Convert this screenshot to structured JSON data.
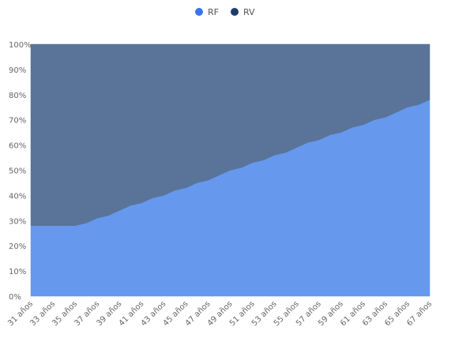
{
  "chart_data": {
    "type": "area",
    "stacked": true,
    "percent": true,
    "title": "",
    "xlabel": "",
    "ylabel": "",
    "x": [
      "31 años",
      "32 años",
      "33 años",
      "34 años",
      "35 años",
      "36 años",
      "37 años",
      "38 años",
      "39 años",
      "40 años",
      "41 años",
      "42 años",
      "43 años",
      "44 años",
      "45 años",
      "46 años",
      "47 años",
      "48 años",
      "49 años",
      "50 años",
      "51 años",
      "52 años",
      "53 años",
      "54 años",
      "55 años",
      "56 años",
      "57 años",
      "58 años",
      "59 años",
      "60 años",
      "61 años",
      "62 años",
      "63 años",
      "64 años",
      "65 años",
      "66 años",
      "67 años"
    ],
    "series": [
      {
        "name": "RF",
        "color": "#6699ee",
        "values": [
          28,
          28,
          28,
          28,
          28,
          29,
          31,
          32,
          34,
          36,
          37,
          39,
          40,
          42,
          43,
          45,
          46,
          48,
          50,
          51,
          53,
          54,
          56,
          57,
          59,
          61,
          62,
          64,
          65,
          67,
          68,
          70,
          71,
          73,
          75,
          76,
          78
        ]
      },
      {
        "name": "RV",
        "color": "#5a7399",
        "values": [
          72,
          72,
          72,
          72,
          72,
          71,
          69,
          68,
          66,
          64,
          63,
          61,
          60,
          58,
          57,
          55,
          54,
          52,
          50,
          49,
          47,
          46,
          44,
          43,
          41,
          39,
          38,
          36,
          35,
          33,
          32,
          30,
          29,
          27,
          25,
          24,
          22
        ]
      }
    ],
    "legend": {
      "position": "top-center",
      "items": [
        {
          "label": "RF",
          "color": "#3c73e8"
        },
        {
          "label": "RV",
          "color": "#1f3d6b"
        }
      ]
    },
    "y_ticks": [
      "0%",
      "10%",
      "20%",
      "30%",
      "40%",
      "50%",
      "60%",
      "70%",
      "80%",
      "90%",
      "100%"
    ],
    "x_tick_labels": [
      "31 años",
      "33 años",
      "35 años",
      "37 años",
      "39 años",
      "41 años",
      "43 años",
      "45 años",
      "47 años",
      "49 años",
      "51 años",
      "53 años",
      "55 años",
      "57 años",
      "59 años",
      "61 años",
      "63 años",
      "65 años",
      "67 años"
    ],
    "ylim": [
      0,
      100
    ],
    "grid": false
  }
}
